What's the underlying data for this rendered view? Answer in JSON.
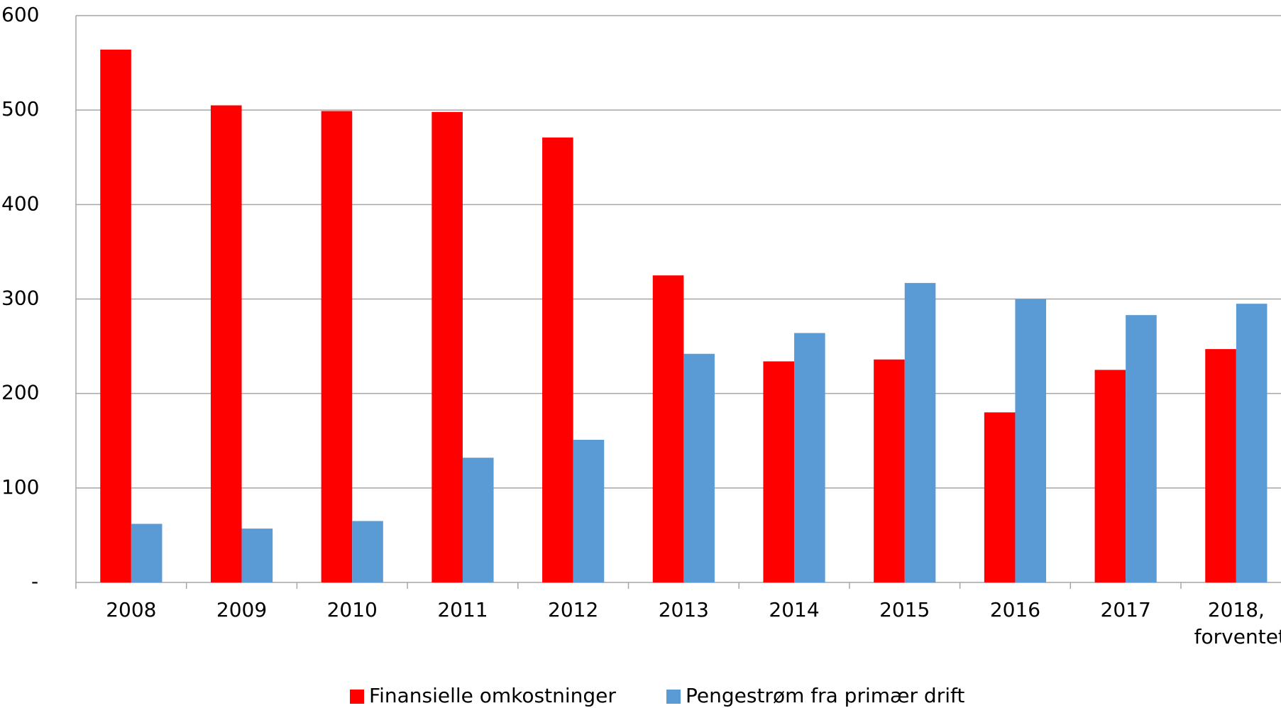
{
  "chart_data": {
    "type": "bar",
    "categories": [
      "2008",
      "2009",
      "2010",
      "2011",
      "2012",
      "2013",
      "2014",
      "2015",
      "2016",
      "2017",
      "2018, forventet"
    ],
    "series": [
      {
        "name": "Finansielle omkostninger",
        "color": "#ff0000",
        "values": [
          564,
          505,
          499,
          498,
          471,
          325,
          234,
          236,
          180,
          225,
          247
        ]
      },
      {
        "name": "Pengestrøm fra primær drift",
        "color": "#5b9bd5",
        "values": [
          62,
          57,
          65,
          132,
          151,
          242,
          264,
          317,
          300,
          283,
          295
        ]
      }
    ],
    "ylim": [
      0,
      600
    ],
    "yticks": [
      {
        "value": 0,
        "label": "-"
      },
      100,
      200,
      300,
      400,
      500,
      600
    ],
    "grid": true,
    "legend": "bottom"
  }
}
